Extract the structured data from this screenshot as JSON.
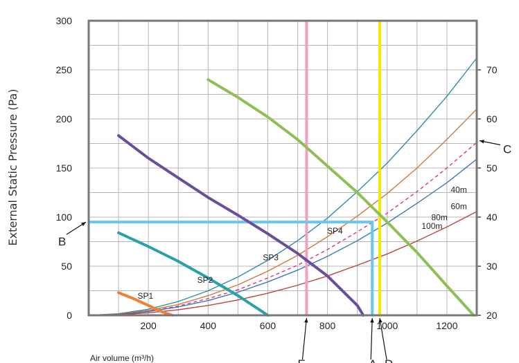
{
  "chart_data": {
    "type": "line",
    "title": "",
    "xlabel": "Air volume (m³/h)",
    "ylabel": "External Static Pressure (Pa)",
    "xlim": [
      0,
      1300
    ],
    "ylim": [
      0,
      300
    ],
    "y2lim": [
      20,
      80
    ],
    "grid": true,
    "x_ticks": [
      "200",
      "400",
      "600",
      "800",
      "1000",
      "1200"
    ],
    "y_ticks": [
      "0",
      "50",
      "100",
      "150",
      "200",
      "250",
      "300"
    ],
    "y2_ticks": [
      "20",
      "30",
      "40",
      "50",
      "60",
      "70"
    ],
    "colors": {
      "frame": "#777777",
      "grid": "#b5b5b5",
      "SP1": "#f08033",
      "SP2": "#2aa0a8",
      "SP3": "#6a4d9c",
      "SP4": "#8dbf55",
      "100m": "#2b8fa8",
      "80m": "#d07a3a",
      "60m_dashed": "#e0307a",
      "60m": "#3c78b8",
      "40m": "#c0423c",
      "vline_E": "#f0a0c0",
      "vline_D": "#f8e800",
      "operating_line": "#66c8f0"
    },
    "fan_curves": [
      {
        "name": "SP1",
        "x": [
          100,
          150,
          200,
          250,
          280
        ],
        "y": [
          23,
          17,
          10,
          3,
          0
        ]
      },
      {
        "name": "SP2",
        "x": [
          100,
          200,
          300,
          400,
          500,
          600
        ],
        "y": [
          84,
          70,
          55,
          38,
          20,
          0
        ]
      },
      {
        "name": "SP3",
        "x": [
          100,
          200,
          300,
          400,
          500,
          600,
          700,
          800,
          900,
          920
        ],
        "y": [
          183,
          160,
          140,
          120,
          102,
          83,
          63,
          40,
          10,
          0
        ]
      },
      {
        "name": "SP4",
        "x": [
          400,
          500,
          600,
          700,
          800,
          900,
          1000,
          1100,
          1200,
          1290
        ],
        "y": [
          240,
          222,
          202,
          179,
          152,
          125,
          95,
          64,
          30,
          0
        ]
      }
    ],
    "system_curves": [
      {
        "name": "100m",
        "dashed": false,
        "x": [
          0,
          100,
          200,
          300,
          400,
          500,
          600,
          700,
          800,
          900,
          1000,
          1100,
          1200,
          1300
        ],
        "y": [
          0,
          1.6,
          6.2,
          14,
          25,
          39,
          56,
          76,
          99,
          126,
          155,
          188,
          223,
          262
        ]
      },
      {
        "name": "80m",
        "dashed": false,
        "x": [
          0,
          100,
          200,
          300,
          400,
          500,
          600,
          700,
          800,
          900,
          1000,
          1100,
          1200,
          1300
        ],
        "y": [
          0,
          1.2,
          5,
          11,
          20,
          31,
          45,
          61,
          80,
          101,
          124,
          150,
          179,
          210
        ]
      },
      {
        "name": "60m (dashed)",
        "dashed": true,
        "x": [
          0,
          100,
          200,
          300,
          400,
          500,
          600,
          700,
          800,
          900,
          1000,
          1100,
          1200,
          1300
        ],
        "y": [
          0,
          1,
          4.2,
          9.4,
          17,
          26,
          38,
          51,
          67,
          85,
          104,
          126,
          150,
          176
        ]
      },
      {
        "name": "60m",
        "dashed": false,
        "x": [
          0,
          100,
          200,
          300,
          400,
          500,
          600,
          700,
          800,
          900,
          1000,
          1100,
          1200,
          1300
        ],
        "y": [
          0,
          0.9,
          3.8,
          8.5,
          15,
          23.5,
          34,
          46,
          60,
          76,
          94,
          114,
          135,
          159
        ]
      },
      {
        "name": "40m",
        "dashed": false,
        "x": [
          0,
          100,
          200,
          300,
          400,
          500,
          600,
          700,
          800,
          900,
          1000,
          1100,
          1200,
          1300
        ],
        "y": [
          0,
          0.6,
          2.5,
          5.6,
          10,
          15.6,
          22.5,
          30.6,
          40,
          51,
          62.5,
          75.6,
          90,
          105.6
        ]
      }
    ],
    "vertical_lines": [
      {
        "name": "E",
        "x": 730,
        "color_key": "vline_E"
      },
      {
        "name": "D",
        "x": 975,
        "color_key": "vline_D"
      }
    ],
    "operating_line": {
      "y": 95,
      "x_end": 950
    },
    "curve_labels": [
      {
        "text": "SP1",
        "x": 190,
        "y": 17
      },
      {
        "text": "SP2",
        "x": 390,
        "y": 33
      },
      {
        "text": "SP3",
        "x": 610,
        "y": 56
      },
      {
        "text": "SP4",
        "x": 825,
        "y": 83
      },
      {
        "text": "100m",
        "x": 1150,
        "y": 88
      },
      {
        "text": "80m",
        "x": 1175,
        "y": 97
      },
      {
        "text": "60m",
        "x": 1240,
        "y": 108
      },
      {
        "text": "40m",
        "x": 1240,
        "y": 125
      }
    ],
    "markers": [
      {
        "text": "B",
        "at": "left",
        "y": 95
      },
      {
        "text": "C",
        "at": "right",
        "y": 175
      },
      {
        "text": "E",
        "at": "bottom",
        "x": 730
      },
      {
        "text": "A",
        "at": "bottom",
        "x": 950
      },
      {
        "text": "D",
        "at": "bottom",
        "x": 975
      }
    ]
  }
}
